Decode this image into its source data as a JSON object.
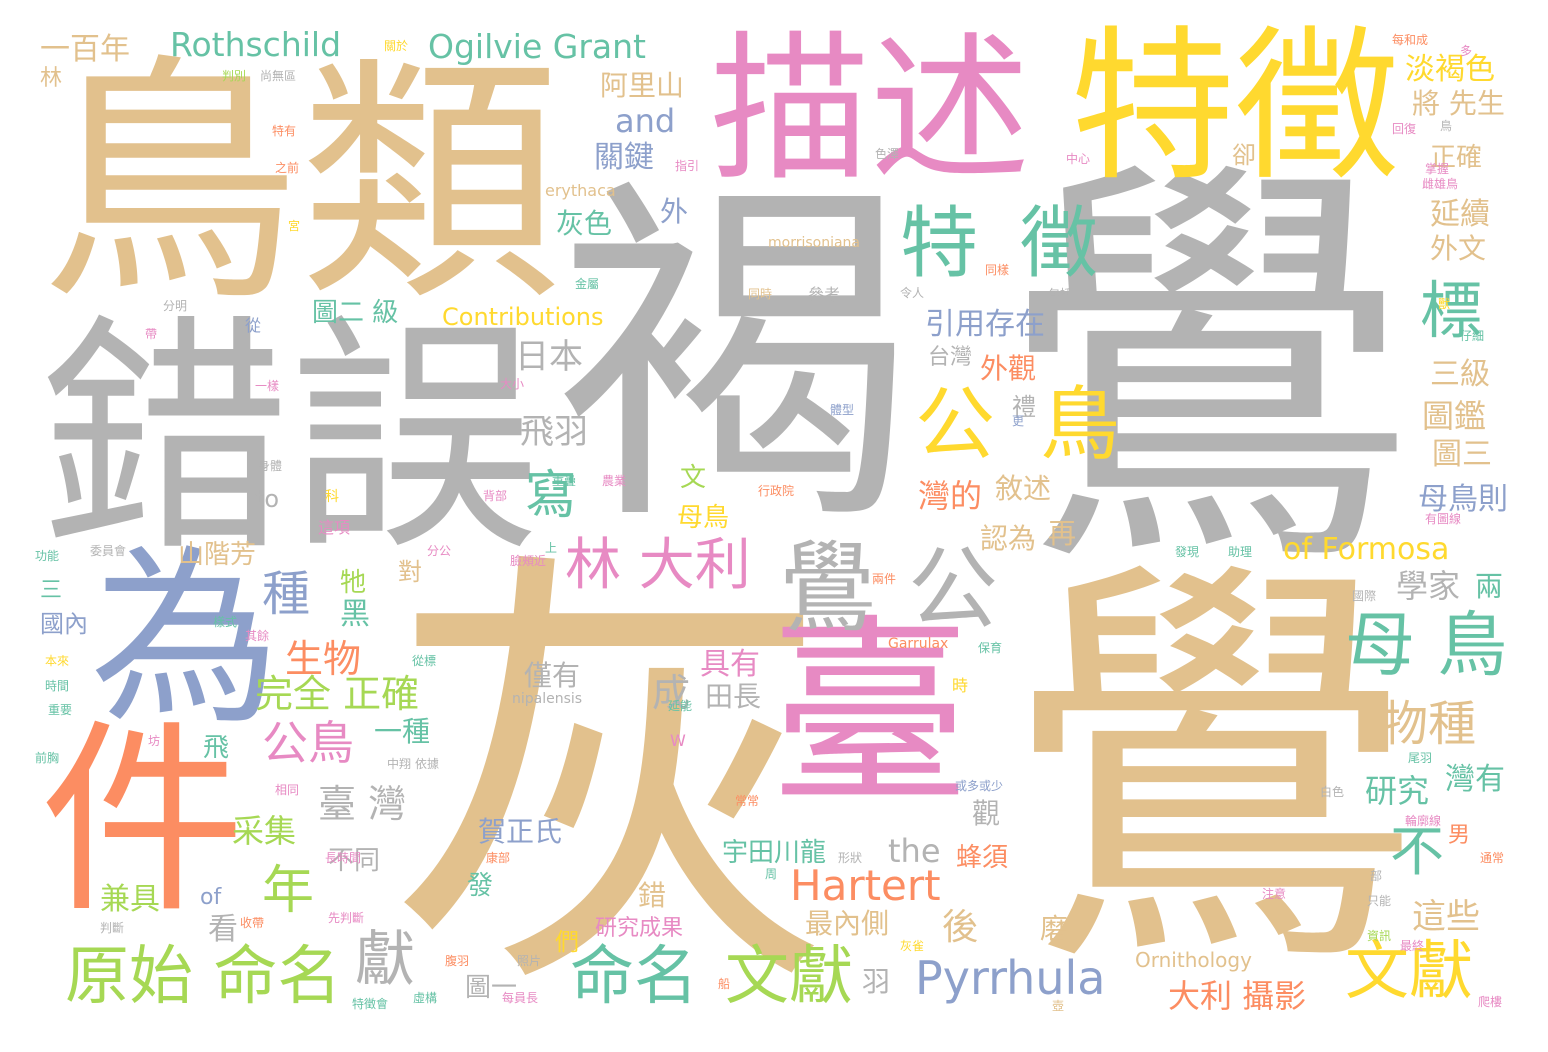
{
  "palette": {
    "tan": "#e2c18d",
    "gray": "#b3b3b3",
    "pink": "#e78ac3",
    "yellow": "#ffd92f",
    "green": "#66c2a5",
    "orange": "#fc8d62",
    "blue": "#8da0cb",
    "lime": "#a6d854"
  },
  "words": [
    {
      "text": "褐",
      "color": "gray"
    },
    {
      "text": "鷽",
      "color": "gray"
    },
    {
      "text": "灰",
      "color": "tan"
    },
    {
      "text": "鷽",
      "color": "tan"
    },
    {
      "text": "鳥類",
      "color": "tan"
    },
    {
      "text": "錯誤",
      "color": "gray"
    },
    {
      "text": "描述",
      "color": "pink"
    },
    {
      "text": "特徵",
      "color": "yellow"
    },
    {
      "text": "為",
      "color": "blue"
    },
    {
      "text": "件",
      "color": "orange"
    },
    {
      "text": "臺",
      "color": "pink"
    },
    {
      "text": "鷽",
      "color": "gray"
    },
    {
      "text": "公",
      "color": "gray"
    },
    {
      "text": "特",
      "color": "green"
    },
    {
      "text": "徵",
      "color": "green"
    },
    {
      "text": "公",
      "color": "yellow"
    },
    {
      "text": "鳥",
      "color": "yellow"
    },
    {
      "text": "母 鳥",
      "color": "green"
    },
    {
      "text": "林 大利",
      "color": "pink"
    },
    {
      "text": "原始 命名",
      "color": "lime"
    },
    {
      "text": "命名",
      "color": "green"
    },
    {
      "text": "文獻",
      "color": "lime"
    },
    {
      "text": "文獻",
      "color": "yellow"
    },
    {
      "text": "Pyrrhula",
      "color": "blue"
    },
    {
      "text": "Hartert",
      "color": "orange"
    },
    {
      "text": "Rothschild",
      "color": "green"
    },
    {
      "text": "Ogilvie Grant",
      "color": "green"
    },
    {
      "text": "一百年",
      "color": "tan"
    },
    {
      "text": "標",
      "color": "green"
    },
    {
      "text": "不",
      "color": "green"
    },
    {
      "text": "寫",
      "color": "green"
    },
    {
      "text": "獻",
      "color": "gray"
    },
    {
      "text": "年",
      "color": "lime"
    },
    {
      "text": "種",
      "color": "blue"
    },
    {
      "text": "物種",
      "color": "tan"
    },
    {
      "text": "公鳥",
      "color": "pink"
    },
    {
      "text": "生物",
      "color": "orange"
    },
    {
      "text": "完全 正確",
      "color": "lime"
    },
    {
      "text": "臺 灣",
      "color": "gray"
    },
    {
      "text": "采集",
      "color": "lime"
    },
    {
      "text": "of Formosa",
      "color": "yellow"
    },
    {
      "text": "Contributions",
      "color": "yellow"
    },
    {
      "text": "and",
      "color": "blue"
    },
    {
      "text": "the",
      "color": "gray"
    },
    {
      "text": "淡褐色",
      "color": "yellow"
    },
    {
      "text": "將 先生",
      "color": "tan"
    },
    {
      "text": "正確",
      "color": "tan"
    },
    {
      "text": "延續",
      "color": "tan"
    },
    {
      "text": "外文",
      "color": "tan"
    },
    {
      "text": "阿里山",
      "color": "tan"
    },
    {
      "text": "關鍵",
      "color": "blue"
    },
    {
      "text": "灰色",
      "color": "green"
    },
    {
      "text": "引用存在",
      "color": "blue"
    },
    {
      "text": "日本",
      "color": "gray"
    },
    {
      "text": "飛羽",
      "color": "gray"
    },
    {
      "text": "圖二 級",
      "color": "green"
    },
    {
      "text": "台灣",
      "color": "gray"
    },
    {
      "text": "外觀",
      "color": "orange"
    },
    {
      "text": "三級",
      "color": "tan"
    },
    {
      "text": "圖鑑",
      "color": "tan"
    },
    {
      "text": "圖三",
      "color": "tan"
    },
    {
      "text": "母鳥則",
      "color": "blue"
    },
    {
      "text": "學家",
      "color": "gray"
    },
    {
      "text": "兩",
      "color": "green"
    },
    {
      "text": "研究",
      "color": "green"
    },
    {
      "text": "灣有",
      "color": "green"
    },
    {
      "text": "這些",
      "color": "tan"
    },
    {
      "text": "大利 攝影",
      "color": "orange"
    },
    {
      "text": "灣的",
      "color": "orange"
    },
    {
      "text": "敘述",
      "color": "tan"
    },
    {
      "text": "認為",
      "color": "tan"
    },
    {
      "text": "母鳥",
      "color": "yellow"
    },
    {
      "text": "具有",
      "color": "pink"
    },
    {
      "text": "成",
      "color": "gray"
    },
    {
      "text": "田長",
      "color": "gray"
    },
    {
      "text": "僅有",
      "color": "gray"
    },
    {
      "text": "一種",
      "color": "green"
    },
    {
      "text": "賀正氏",
      "color": "blue"
    },
    {
      "text": "宇田川龍",
      "color": "green"
    },
    {
      "text": "蜂須",
      "color": "orange"
    },
    {
      "text": "最內側",
      "color": "tan"
    },
    {
      "text": "研究成果",
      "color": "pink"
    },
    {
      "text": "兼具",
      "color": "lime"
    },
    {
      "text": "看",
      "color": "gray"
    },
    {
      "text": "山階芳",
      "color": "tan"
    },
    {
      "text": "國內",
      "color": "blue"
    },
    {
      "text": "黑",
      "color": "green"
    },
    {
      "text": "牠",
      "color": "lime"
    },
    {
      "text": "對",
      "color": "tan"
    },
    {
      "text": "飛",
      "color": "green"
    },
    {
      "text": "to",
      "color": "gray"
    },
    {
      "text": "of",
      "color": "blue"
    },
    {
      "text": "羽",
      "color": "gray"
    },
    {
      "text": "磨",
      "color": "tan"
    },
    {
      "text": "後",
      "color": "tan"
    },
    {
      "text": "再",
      "color": "tan"
    },
    {
      "text": "發",
      "color": "green"
    },
    {
      "text": "錯",
      "color": "tan"
    },
    {
      "text": "們",
      "color": "yellow"
    },
    {
      "text": "圖一",
      "color": "gray"
    },
    {
      "text": "觀",
      "color": "gray"
    },
    {
      "text": "禮",
      "color": "gray"
    },
    {
      "text": "Ornithology",
      "color": "tan"
    },
    {
      "text": "外",
      "color": "blue"
    },
    {
      "text": "文",
      "color": "lime"
    },
    {
      "text": "卻",
      "color": "tan"
    },
    {
      "text": "不同",
      "color": "gray"
    },
    {
      "text": "林",
      "color": "tan"
    },
    {
      "text": "三",
      "color": "green"
    },
    {
      "text": "男",
      "color": "orange"
    },
    {
      "text": "時",
      "color": "yellow"
    },
    {
      "text": "morrisoniana",
      "color": "tan"
    },
    {
      "text": "erythaca",
      "color": "tan"
    },
    {
      "text": "nipalensis",
      "color": "gray"
    },
    {
      "text": "Garrulax",
      "color": "orange"
    },
    {
      "text": "W",
      "color": "pink"
    },
    {
      "text": "每和成",
      "color": "orange"
    },
    {
      "text": "特有",
      "color": "orange"
    },
    {
      "text": "之前",
      "color": "orange"
    },
    {
      "text": "中心",
      "color": "pink"
    },
    {
      "text": "指引",
      "color": "pink"
    },
    {
      "text": "尚無區",
      "color": "gray"
    },
    {
      "text": "判別",
      "color": "lime"
    },
    {
      "text": "關於",
      "color": "yellow"
    },
    {
      "text": "參考",
      "color": "gray"
    },
    {
      "text": "令人",
      "color": "gray"
    },
    {
      "text": "包括",
      "color": "gray"
    },
    {
      "text": "分明",
      "color": "gray"
    },
    {
      "text": "從",
      "color": "blue"
    },
    {
      "text": "一樣",
      "color": "pink"
    },
    {
      "text": "大小",
      "color": "pink"
    },
    {
      "text": "身體",
      "color": "gray"
    },
    {
      "text": "科",
      "color": "yellow"
    },
    {
      "text": "這項",
      "color": "pink"
    },
    {
      "text": "功能",
      "color": "green"
    },
    {
      "text": "委員會",
      "color": "gray"
    },
    {
      "text": "分公",
      "color": "pink"
    },
    {
      "text": "上",
      "color": "green"
    },
    {
      "text": "臉頰近",
      "color": "pink"
    },
    {
      "text": "發現",
      "color": "green"
    },
    {
      "text": "助理",
      "color": "green"
    },
    {
      "text": "國際",
      "color": "gray"
    },
    {
      "text": "兩件",
      "color": "orange"
    },
    {
      "text": "樣式",
      "color": "green"
    },
    {
      "text": "其餘",
      "color": "pink"
    },
    {
      "text": "本來",
      "color": "yellow"
    },
    {
      "text": "時間",
      "color": "green"
    },
    {
      "text": "重要",
      "color": "green"
    },
    {
      "text": "前胸",
      "color": "green"
    },
    {
      "text": "相同",
      "color": "pink"
    },
    {
      "text": "常常",
      "color": "orange"
    },
    {
      "text": "形狀",
      "color": "gray"
    },
    {
      "text": "中翔",
      "color": "gray"
    },
    {
      "text": "長時間",
      "color": "pink"
    },
    {
      "text": "先判斷",
      "color": "pink"
    },
    {
      "text": "收帶",
      "color": "orange"
    },
    {
      "text": "判斷",
      "color": "gray"
    },
    {
      "text": "腹羽",
      "color": "orange"
    },
    {
      "text": "照片",
      "color": "gray"
    },
    {
      "text": "虛構",
      "color": "green"
    },
    {
      "text": "每員長",
      "color": "pink"
    },
    {
      "text": "特徵會",
      "color": "green"
    },
    {
      "text": "白色",
      "color": "gray"
    },
    {
      "text": "爬樓",
      "color": "pink"
    },
    {
      "text": "通常",
      "color": "orange"
    },
    {
      "text": "注意",
      "color": "pink"
    },
    {
      "text": "只能",
      "color": "gray"
    },
    {
      "text": "資訊",
      "color": "lime"
    },
    {
      "text": "部",
      "color": "gray"
    },
    {
      "text": "最終",
      "color": "pink"
    },
    {
      "text": "灰雀",
      "color": "yellow"
    },
    {
      "text": "船",
      "color": "orange"
    },
    {
      "text": "壺",
      "color": "tan"
    },
    {
      "text": "或多或少",
      "color": "blue"
    },
    {
      "text": "尾羽",
      "color": "green"
    },
    {
      "text": "輪廓線",
      "color": "pink"
    },
    {
      "text": "體型",
      "color": "blue"
    },
    {
      "text": "保育",
      "color": "green"
    },
    {
      "text": "依據",
      "color": "gray"
    },
    {
      "text": "金屬",
      "color": "green"
    },
    {
      "text": "背部",
      "color": "pink"
    },
    {
      "text": "重疊",
      "color": "green"
    },
    {
      "text": "農業",
      "color": "pink"
    },
    {
      "text": "行政院",
      "color": "orange"
    },
    {
      "text": "有圖線",
      "color": "pink"
    },
    {
      "text": "掌握",
      "color": "pink"
    },
    {
      "text": "雌雄鳥",
      "color": "pink"
    },
    {
      "text": "色澤",
      "color": "gray"
    },
    {
      "text": "更",
      "color": "blue"
    },
    {
      "text": "回復",
      "color": "pink"
    },
    {
      "text": "鳥",
      "color": "gray"
    },
    {
      "text": "仔細",
      "color": "green"
    },
    {
      "text": "宮",
      "color": "yellow"
    },
    {
      "text": "延能",
      "color": "green"
    },
    {
      "text": "坊",
      "color": "pink"
    },
    {
      "text": "獸",
      "color": "yellow"
    },
    {
      "text": "帶",
      "color": "pink"
    },
    {
      "text": "康部",
      "color": "orange"
    },
    {
      "text": "周",
      "color": "green"
    },
    {
      "text": "同樣",
      "color": "orange"
    },
    {
      "text": "同時",
      "color": "tan"
    },
    {
      "text": "從標",
      "color": "green"
    },
    {
      "text": "多",
      "color": "pink"
    }
  ]
}
